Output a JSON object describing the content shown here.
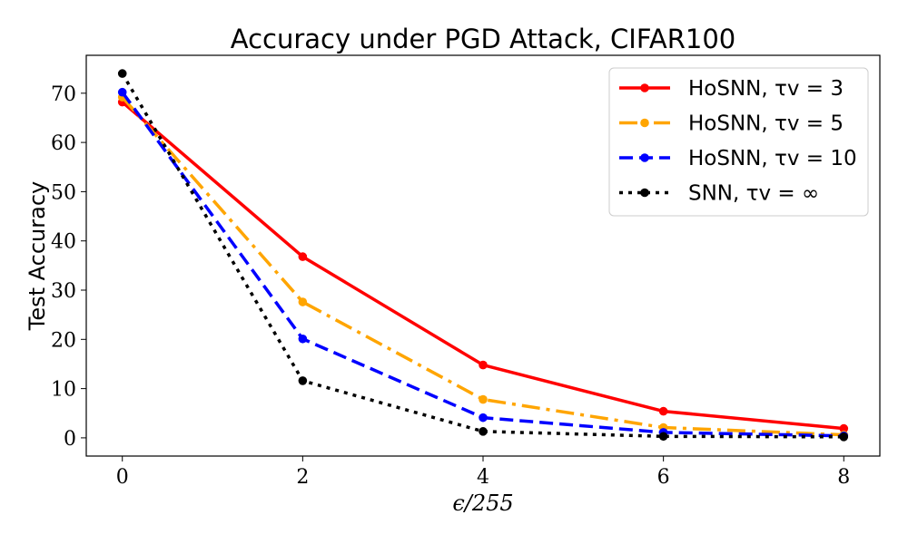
{
  "chart_data": {
    "type": "line",
    "title": "Accuracy under PGD Attack, CIFAR100",
    "xlabel": "ϵ/255",
    "ylabel": "Test Accuracy",
    "x": [
      0,
      2,
      4,
      6,
      8
    ],
    "xlim": [
      -0.4,
      8.4
    ],
    "ylim": [
      -3.7,
      77.7
    ],
    "xticks": [
      0,
      2,
      4,
      6,
      8
    ],
    "yticks": [
      0,
      10,
      20,
      30,
      40,
      50,
      60,
      70
    ],
    "legend_position": "top-right",
    "series": [
      {
        "name": "HoSNN, τv = 3",
        "legend_label": "HoSNN, τv = 3",
        "color": "#ff0000",
        "style": "solid",
        "values": [
          68.2,
          36.8,
          14.8,
          5.4,
          1.9
        ]
      },
      {
        "name": "HoSNN, τv = 5",
        "legend_label": "HoSNN, τv = 5",
        "color": "#ffa500",
        "style": "dashdot",
        "values": [
          69.2,
          27.6,
          7.8,
          2.1,
          0.6
        ]
      },
      {
        "name": "HoSNN, τv = 10",
        "legend_label": "HoSNN, τv = 10",
        "color": "#0000ff",
        "style": "dashed",
        "values": [
          70.2,
          20.1,
          4.1,
          1.1,
          0.4
        ]
      },
      {
        "name": "SNN, τv = ∞",
        "legend_label": "SNN, τv = ∞",
        "color": "#000000",
        "style": "dotted",
        "values": [
          74.0,
          11.6,
          1.3,
          0.3,
          0.2
        ]
      }
    ]
  }
}
